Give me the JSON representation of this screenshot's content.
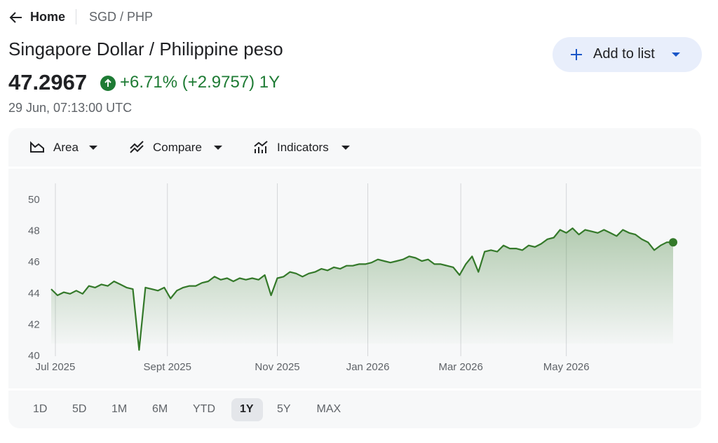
{
  "nav": {
    "back": "Home",
    "pair": "SGD / PHP"
  },
  "header": {
    "title": "Singapore Dollar / Philippine peso",
    "price": "47.2967",
    "change": "+6.71% (+2.9757) 1Y",
    "timestamp": "29 Jun, 07:13:00 UTC"
  },
  "button": {
    "label": "Add to list"
  },
  "toolbar": [
    "Area",
    "Compare",
    "Indicators"
  ],
  "ranges": {
    "options": [
      "1D",
      "5D",
      "1M",
      "6M",
      "YTD",
      "1Y",
      "5Y",
      "MAX"
    ],
    "selected": 5
  },
  "chart_data": {
    "type": "area",
    "color": "#34792a",
    "values": [
      44.3,
      43.9,
      44.1,
      44.0,
      44.2,
      44.0,
      44.5,
      44.4,
      44.6,
      44.5,
      44.8,
      44.6,
      44.4,
      44.3,
      40.4,
      44.4,
      44.3,
      44.2,
      44.4,
      43.7,
      44.2,
      44.4,
      44.5,
      44.5,
      44.7,
      44.8,
      45.1,
      44.9,
      45.0,
      44.8,
      45.0,
      44.9,
      45.0,
      44.9,
      45.2,
      43.9,
      45.0,
      45.1,
      45.4,
      45.3,
      45.1,
      45.3,
      45.4,
      45.6,
      45.5,
      45.7,
      45.6,
      45.8,
      45.8,
      45.9,
      45.9,
      46.0,
      46.2,
      46.1,
      46.0,
      46.1,
      46.2,
      46.4,
      46.3,
      46.1,
      46.2,
      45.9,
      45.9,
      45.8,
      45.7,
      45.2,
      45.9,
      46.4,
      45.4,
      46.7,
      46.8,
      46.7,
      47.1,
      46.9,
      46.9,
      46.8,
      47.1,
      47.0,
      47.2,
      47.5,
      47.6,
      48.1,
      47.9,
      48.2,
      47.8,
      48.1,
      48.0,
      47.9,
      48.1,
      47.9,
      47.7,
      48.1,
      47.9,
      47.8,
      47.5,
      47.3,
      46.8,
      47.1,
      47.3,
      47.3
    ],
    "xlim": [
      0,
      99
    ],
    "xticks": [
      {
        "value": 0.67,
        "label": "Jul 2025"
      },
      {
        "value": 18.5,
        "label": "Sept 2025"
      },
      {
        "value": 36.0,
        "label": "Nov 2025"
      },
      {
        "value": 50.4,
        "label": "Jan 2026"
      },
      {
        "value": 65.2,
        "label": "Mar 2026"
      },
      {
        "value": 82.0,
        "label": "May 2026"
      }
    ],
    "ylim": [
      40,
      50
    ],
    "yticks": [
      40,
      42,
      44,
      46,
      48,
      50
    ],
    "grid": "x"
  }
}
